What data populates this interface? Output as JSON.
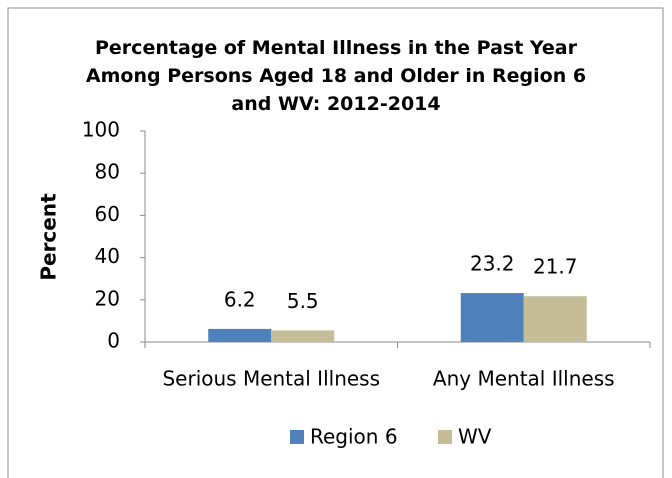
{
  "chart_data": {
    "type": "bar",
    "title": "Percentage of Mental Illness in the Past Year Among Persons Aged 18 and Older in Region 6 and WV: 2012-2014",
    "y_label": "Percent",
    "categories": [
      "Serious Mental Illness",
      "Any Mental Illness"
    ],
    "series": [
      {
        "name": "Region 6",
        "color": "#4f81bd",
        "values": [
          6.2,
          23.2
        ]
      },
      {
        "name": "WV",
        "color": "#c4bd97",
        "values": [
          5.5,
          21.7
        ]
      }
    ],
    "ylim": [
      0,
      100
    ],
    "yticks": [
      0,
      20,
      40,
      60,
      80,
      100
    ],
    "grid": false,
    "legend": "bottom"
  }
}
